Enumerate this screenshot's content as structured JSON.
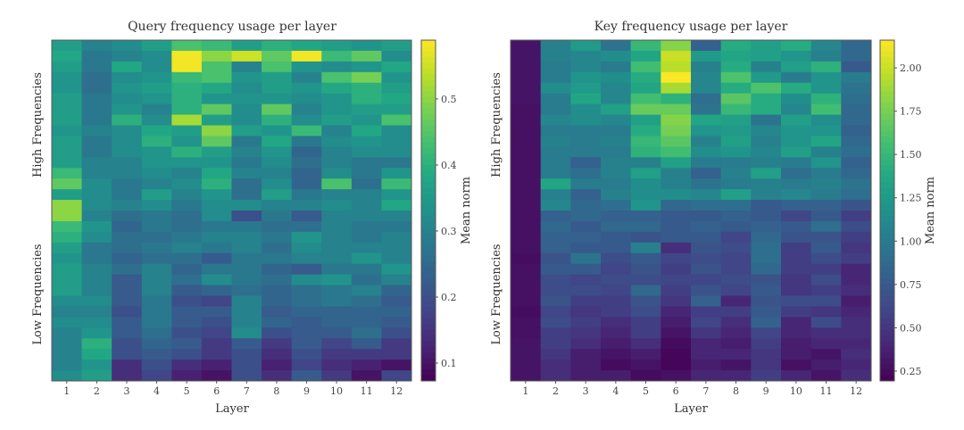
{
  "chart_data": [
    {
      "type": "heatmap",
      "title": "Query frequency usage per layer",
      "xlabel": "Layer",
      "ylabel_top": "High Frequencies",
      "ylabel_bottom": "Low Frequencies",
      "colorbar_label": "Mean norm",
      "colormap": "viridis",
      "vrange": [
        0.073,
        0.589
      ],
      "colorbar_ticks": [
        "0.1",
        "0.2",
        "0.3",
        "0.4",
        "0.5"
      ],
      "x_ticks": [
        "1",
        "2",
        "3",
        "4",
        "5",
        "6",
        "7",
        "8",
        "9",
        "10",
        "11",
        "12"
      ],
      "rows_order": "top = high frequencies, bottom = low frequencies",
      "values": [
        [
          0.36,
          0.3,
          0.32,
          0.36,
          0.44,
          0.42,
          0.36,
          0.4,
          0.38,
          0.36,
          0.34,
          0.36
        ],
        [
          0.38,
          0.28,
          0.3,
          0.32,
          0.58,
          0.5,
          0.55,
          0.46,
          0.58,
          0.42,
          0.46,
          0.32
        ],
        [
          0.36,
          0.28,
          0.38,
          0.32,
          0.58,
          0.44,
          0.3,
          0.44,
          0.34,
          0.32,
          0.34,
          0.38
        ],
        [
          0.34,
          0.26,
          0.32,
          0.34,
          0.42,
          0.44,
          0.34,
          0.36,
          0.3,
          0.44,
          0.48,
          0.34
        ],
        [
          0.34,
          0.26,
          0.34,
          0.36,
          0.4,
          0.38,
          0.32,
          0.36,
          0.34,
          0.38,
          0.4,
          0.36
        ],
        [
          0.36,
          0.28,
          0.32,
          0.34,
          0.4,
          0.34,
          0.34,
          0.34,
          0.32,
          0.34,
          0.4,
          0.38
        ],
        [
          0.36,
          0.28,
          0.34,
          0.3,
          0.4,
          0.46,
          0.32,
          0.46,
          0.3,
          0.34,
          0.36,
          0.36
        ],
        [
          0.36,
          0.28,
          0.4,
          0.32,
          0.52,
          0.36,
          0.32,
          0.4,
          0.32,
          0.36,
          0.34,
          0.44
        ],
        [
          0.34,
          0.3,
          0.32,
          0.38,
          0.36,
          0.5,
          0.36,
          0.34,
          0.42,
          0.3,
          0.38,
          0.32
        ],
        [
          0.36,
          0.28,
          0.32,
          0.4,
          0.34,
          0.46,
          0.28,
          0.38,
          0.28,
          0.32,
          0.34,
          0.32
        ],
        [
          0.36,
          0.28,
          0.32,
          0.34,
          0.4,
          0.36,
          0.3,
          0.34,
          0.24,
          0.3,
          0.32,
          0.32
        ],
        [
          0.36,
          0.3,
          0.3,
          0.34,
          0.34,
          0.34,
          0.28,
          0.32,
          0.26,
          0.3,
          0.28,
          0.28
        ],
        [
          0.42,
          0.3,
          0.3,
          0.32,
          0.3,
          0.38,
          0.3,
          0.3,
          0.24,
          0.32,
          0.28,
          0.34
        ],
        [
          0.46,
          0.32,
          0.28,
          0.3,
          0.32,
          0.4,
          0.26,
          0.32,
          0.24,
          0.44,
          0.26,
          0.42
        ],
        [
          0.36,
          0.32,
          0.28,
          0.36,
          0.3,
          0.34,
          0.26,
          0.36,
          0.28,
          0.3,
          0.3,
          0.34
        ],
        [
          0.5,
          0.32,
          0.3,
          0.32,
          0.28,
          0.32,
          0.32,
          0.3,
          0.3,
          0.32,
          0.3,
          0.38
        ],
        [
          0.5,
          0.3,
          0.26,
          0.28,
          0.26,
          0.32,
          0.2,
          0.28,
          0.22,
          0.3,
          0.3,
          0.3
        ],
        [
          0.42,
          0.34,
          0.24,
          0.28,
          0.26,
          0.28,
          0.28,
          0.26,
          0.26,
          0.3,
          0.28,
          0.28
        ],
        [
          0.4,
          0.32,
          0.26,
          0.26,
          0.28,
          0.3,
          0.3,
          0.28,
          0.34,
          0.3,
          0.28,
          0.3
        ],
        [
          0.36,
          0.28,
          0.26,
          0.28,
          0.3,
          0.28,
          0.3,
          0.26,
          0.32,
          0.3,
          0.3,
          0.3
        ],
        [
          0.34,
          0.28,
          0.24,
          0.26,
          0.26,
          0.22,
          0.28,
          0.28,
          0.3,
          0.3,
          0.34,
          0.3
        ],
        [
          0.36,
          0.3,
          0.26,
          0.3,
          0.24,
          0.28,
          0.28,
          0.24,
          0.22,
          0.28,
          0.28,
          0.34
        ],
        [
          0.36,
          0.3,
          0.22,
          0.3,
          0.26,
          0.32,
          0.28,
          0.26,
          0.32,
          0.34,
          0.26,
          0.3
        ],
        [
          0.36,
          0.3,
          0.22,
          0.3,
          0.22,
          0.24,
          0.26,
          0.24,
          0.26,
          0.28,
          0.3,
          0.24
        ],
        [
          0.32,
          0.32,
          0.22,
          0.28,
          0.2,
          0.18,
          0.3,
          0.24,
          0.26,
          0.28,
          0.26,
          0.22
        ],
        [
          0.3,
          0.3,
          0.2,
          0.28,
          0.22,
          0.22,
          0.3,
          0.22,
          0.24,
          0.24,
          0.24,
          0.24
        ],
        [
          0.32,
          0.32,
          0.22,
          0.28,
          0.22,
          0.2,
          0.3,
          0.24,
          0.22,
          0.24,
          0.24,
          0.22
        ],
        [
          0.3,
          0.34,
          0.22,
          0.26,
          0.2,
          0.18,
          0.32,
          0.2,
          0.22,
          0.22,
          0.26,
          0.2
        ],
        [
          0.3,
          0.4,
          0.2,
          0.24,
          0.22,
          0.16,
          0.22,
          0.16,
          0.22,
          0.18,
          0.22,
          0.16
        ],
        [
          0.3,
          0.38,
          0.2,
          0.22,
          0.2,
          0.16,
          0.2,
          0.14,
          0.2,
          0.16,
          0.16,
          0.16
        ],
        [
          0.3,
          0.34,
          0.14,
          0.2,
          0.14,
          0.12,
          0.2,
          0.12,
          0.18,
          0.14,
          0.12,
          0.1
        ],
        [
          0.32,
          0.36,
          0.14,
          0.18,
          0.12,
          0.1,
          0.2,
          0.14,
          0.22,
          0.16,
          0.1,
          0.18
        ]
      ]
    },
    {
      "type": "heatmap",
      "title": "Key frequency usage per layer",
      "xlabel": "Layer",
      "ylabel_top": "High Frequencies",
      "ylabel_bottom": "Low Frequencies",
      "colorbar_label": "Mean norm",
      "colormap": "viridis",
      "vrange": [
        0.193,
        2.16
      ],
      "colorbar_ticks": [
        "0.25",
        "0.50",
        "0.75",
        "1.00",
        "1.25",
        "1.50",
        "1.75",
        "2.00"
      ],
      "x_ticks": [
        "1",
        "2",
        "3",
        "4",
        "5",
        "6",
        "7",
        "8",
        "9",
        "10",
        "11",
        "12"
      ],
      "rows_order": "top = high frequencies, bottom = low frequencies",
      "values": [
        [
          0.3,
          1.05,
          1.25,
          0.95,
          1.5,
          1.8,
          0.8,
          1.4,
          1.3,
          1.4,
          1.1,
          0.85
        ],
        [
          0.3,
          1.05,
          1.1,
          1.15,
          1.35,
          2.0,
          1.25,
          1.35,
          1.3,
          1.2,
          1.05,
          0.85
        ],
        [
          0.3,
          1.0,
          1.1,
          1.0,
          1.55,
          1.95,
          1.05,
          1.4,
          1.05,
          1.3,
          1.45,
          0.75
        ],
        [
          0.3,
          1.0,
          1.2,
          1.15,
          1.4,
          2.15,
          1.1,
          1.6,
          1.25,
          1.0,
          1.2,
          1.0
        ],
        [
          0.3,
          1.15,
          1.25,
          1.1,
          1.35,
          1.9,
          1.1,
          1.4,
          1.6,
          1.4,
          1.2,
          0.95
        ],
        [
          0.3,
          1.0,
          1.35,
          1.1,
          1.55,
          1.45,
          0.9,
          1.65,
          1.4,
          1.15,
          1.45,
          0.9
        ],
        [
          0.28,
          1.0,
          1.15,
          1.3,
          1.7,
          1.7,
          0.95,
          1.5,
          1.4,
          1.1,
          1.55,
          0.85
        ],
        [
          0.28,
          1.1,
          1.15,
          1.1,
          1.3,
          1.8,
          1.35,
          1.3,
          0.95,
          1.3,
          1.15,
          0.85
        ],
        [
          0.28,
          1.0,
          1.0,
          1.0,
          1.4,
          1.75,
          1.2,
          1.25,
          1.1,
          1.2,
          1.2,
          0.8
        ],
        [
          0.28,
          1.05,
          1.0,
          1.05,
          1.5,
          1.65,
          1.05,
          1.3,
          1.05,
          1.2,
          1.35,
          0.85
        ],
        [
          0.28,
          1.0,
          1.0,
          1.0,
          1.45,
          1.55,
          1.15,
          1.2,
          1.1,
          1.3,
          1.05,
          0.9
        ],
        [
          0.28,
          1.0,
          0.8,
          1.05,
          1.05,
          1.3,
          1.0,
          1.0,
          1.05,
          1.0,
          1.2,
          0.8
        ],
        [
          0.28,
          1.0,
          0.9,
          1.05,
          1.3,
          1.05,
          0.8,
          1.05,
          1.3,
          0.9,
          1.0,
          0.85
        ],
        [
          0.28,
          1.35,
          1.0,
          1.0,
          1.15,
          1.05,
          0.95,
          1.0,
          1.05,
          1.0,
          1.05,
          0.95
        ],
        [
          0.28,
          1.05,
          0.8,
          1.05,
          1.15,
          1.15,
          1.1,
          1.3,
          1.05,
          1.1,
          1.0,
          0.9
        ],
        [
          0.28,
          1.1,
          0.85,
          0.9,
          1.2,
          0.85,
          0.9,
          0.9,
          0.75,
          0.8,
          0.8,
          0.7
        ],
        [
          0.28,
          0.8,
          0.85,
          0.8,
          0.8,
          0.75,
          0.75,
          0.8,
          0.75,
          0.6,
          0.75,
          0.55
        ],
        [
          0.28,
          0.85,
          0.75,
          0.85,
          0.85,
          0.75,
          0.8,
          0.75,
          0.8,
          0.75,
          0.9,
          0.65
        ],
        [
          0.28,
          0.8,
          0.8,
          0.75,
          0.7,
          0.75,
          0.75,
          0.6,
          0.85,
          0.7,
          0.7,
          0.55
        ],
        [
          0.28,
          0.8,
          0.75,
          0.75,
          1.05,
          0.45,
          0.7,
          0.65,
          0.9,
          0.55,
          0.75,
          0.5
        ],
        [
          0.26,
          0.7,
          0.95,
          0.65,
          0.75,
          0.6,
          0.65,
          0.6,
          0.9,
          0.55,
          0.65,
          0.55
        ],
        [
          0.28,
          0.75,
          0.75,
          0.6,
          0.7,
          0.55,
          0.7,
          0.6,
          0.85,
          0.55,
          0.55,
          0.4
        ],
        [
          0.28,
          0.65,
          0.6,
          0.65,
          0.65,
          0.6,
          0.6,
          0.65,
          0.7,
          0.5,
          0.65,
          0.4
        ],
        [
          0.28,
          0.65,
          0.65,
          0.6,
          0.85,
          0.55,
          0.7,
          0.6,
          0.75,
          0.5,
          0.55,
          0.45
        ],
        [
          0.28,
          0.7,
          0.55,
          0.55,
          0.7,
          0.5,
          0.8,
          0.4,
          0.7,
          0.65,
          0.65,
          0.35
        ],
        [
          0.26,
          0.6,
          0.5,
          0.55,
          0.65,
          0.4,
          0.55,
          0.55,
          0.75,
          0.55,
          0.5,
          0.4
        ],
        [
          0.28,
          0.65,
          0.55,
          0.45,
          0.55,
          0.35,
          0.6,
          0.45,
          0.8,
          0.4,
          0.65,
          0.45
        ],
        [
          0.28,
          0.55,
          0.5,
          0.4,
          0.55,
          0.3,
          0.5,
          0.4,
          0.6,
          0.4,
          0.45,
          0.45
        ],
        [
          0.3,
          0.55,
          0.45,
          0.35,
          0.45,
          0.25,
          0.4,
          0.35,
          0.55,
          0.35,
          0.4,
          0.4
        ],
        [
          0.3,
          0.5,
          0.35,
          0.3,
          0.35,
          0.22,
          0.4,
          0.4,
          0.5,
          0.35,
          0.3,
          0.45
        ],
        [
          0.3,
          0.45,
          0.35,
          0.25,
          0.3,
          0.22,
          0.35,
          0.3,
          0.5,
          0.28,
          0.35,
          0.4
        ],
        [
          0.3,
          0.45,
          0.35,
          0.35,
          0.25,
          0.28,
          0.4,
          0.4,
          0.55,
          0.4,
          0.3,
          0.45
        ]
      ]
    }
  ]
}
